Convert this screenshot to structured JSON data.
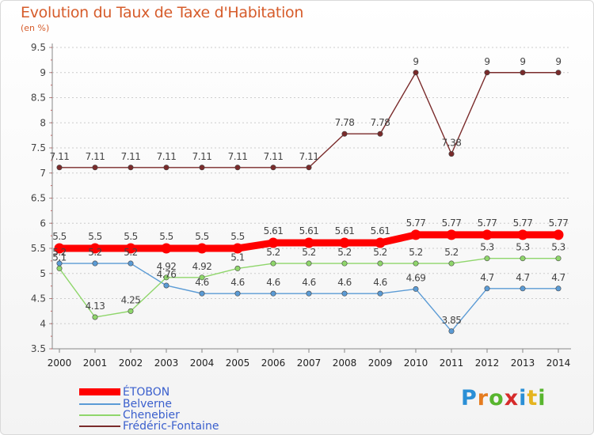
{
  "header": {
    "title": "Evolution du Taux de Taxe d'Habitation",
    "subtitle": "(en %)"
  },
  "logo": {
    "text": "Proxiti",
    "colors": [
      "#2a8fd6",
      "#e57c1f",
      "#58b52e",
      "#d62a2a",
      "#2a8fd6",
      "#e5b41f",
      "#58b52e"
    ]
  },
  "chart_data": {
    "type": "line",
    "title": "Evolution du Taux de Taxe d'Habitation",
    "ylabel": "(en %)",
    "xlabel": "",
    "x": [
      "2000",
      "2001",
      "2002",
      "2003",
      "2004",
      "2005",
      "2006",
      "2007",
      "2008",
      "2009",
      "2010",
      "2011",
      "2012",
      "2013",
      "2014"
    ],
    "ylim": [
      3.5,
      9.5
    ],
    "yticks": [
      "3.5",
      "4",
      "4.5",
      "5",
      "5.5",
      "6",
      "6.5",
      "7",
      "7.5",
      "8",
      "8.5",
      "9",
      "9.5"
    ],
    "grid": "horizontal-dashed",
    "legend_position": "bottom-left",
    "series": [
      {
        "name": "ÉTOBON",
        "color": "#ff0000",
        "values": [
          5.5,
          5.5,
          5.5,
          5.5,
          5.5,
          5.5,
          5.61,
          5.61,
          5.61,
          5.61,
          5.77,
          5.77,
          5.77,
          5.77,
          5.77
        ],
        "labels": [
          "5.5",
          "5.5",
          "5.5",
          "5.5",
          "5.5",
          "5.5",
          "5.61",
          "5.61",
          "5.61",
          "5.61",
          "5.77",
          "5.77",
          "5.77",
          "5.77",
          "5.77"
        ]
      },
      {
        "name": "Belverne",
        "color": "#5b9bd5",
        "values": [
          5.2,
          5.2,
          5.2,
          4.76,
          4.6,
          4.6,
          4.6,
          4.6,
          4.6,
          4.6,
          4.69,
          3.85,
          4.7,
          4.7,
          4.7
        ],
        "labels": [
          "5.2",
          "5.2",
          "5.2",
          "4.76",
          "4.6",
          "4.6",
          "4.6",
          "4.6",
          "4.6",
          "4.6",
          "4.69",
          "3.85",
          "4.7",
          "4.7",
          "4.7"
        ]
      },
      {
        "name": "Chenebier",
        "color": "#8fd66b",
        "values": [
          5.1,
          4.13,
          4.25,
          4.92,
          4.92,
          5.1,
          5.2,
          5.2,
          5.2,
          5.2,
          5.2,
          5.2,
          5.3,
          5.3,
          5.3
        ],
        "labels": [
          "5.1",
          "4.13",
          "4.25",
          "4.92",
          "4.92",
          "5.1",
          "5.2",
          "5.2",
          "5.2",
          "5.2",
          "5.2",
          "5.2",
          "5.3",
          "5.3",
          "5.3"
        ]
      },
      {
        "name": "Frédéric-Fontaine",
        "color": "#7a2b2b",
        "values": [
          7.11,
          7.11,
          7.11,
          7.11,
          7.11,
          7.11,
          7.11,
          7.11,
          7.78,
          7.78,
          9,
          7.38,
          9,
          9,
          9
        ],
        "labels": [
          "7.11",
          "7.11",
          "7.11",
          "7.11",
          "7.11",
          "7.11",
          "7.11",
          "7.11",
          "7.78",
          "7.78",
          "9",
          "7.38",
          "9",
          "9",
          "9"
        ]
      }
    ]
  }
}
